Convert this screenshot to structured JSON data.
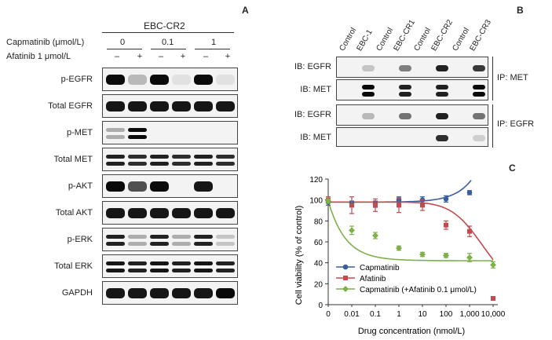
{
  "panel_a": {
    "letter": "A",
    "cell_line": "EBC-CR2",
    "capmatinib_label": "Capmatinib (μmol/L)",
    "capmatinib_values": [
      "0",
      "0.1",
      "1"
    ],
    "afatinib_label": "Afatinib 1 μmol/L",
    "afatinib_signs": [
      "–",
      "+",
      "–",
      "+",
      "–",
      "+"
    ],
    "rows": [
      "p-EGFR",
      "Total EGFR",
      "p-MET",
      "Total MET",
      "p-AKT",
      "Total AKT",
      "p-ERK",
      "Total ERK",
      "GAPDH"
    ]
  },
  "panel_b": {
    "letter": "B",
    "lanes": [
      "Control",
      "EBC-1",
      "Control",
      "EBC-CR1",
      "Control",
      "EBC-CR2",
      "Control",
      "EBC-CR3"
    ],
    "rows": [
      "IB: EGFR",
      "IB: MET",
      "IB: EGFR",
      "IB: MET"
    ],
    "groups": [
      "IP: MET",
      "IP: EGFR"
    ]
  },
  "panel_c": {
    "letter": "C"
  },
  "chart_data": {
    "type": "line",
    "xlabel": "Drug concentration (nmol/L)",
    "ylabel": "Cell viability (% of control)",
    "x_categories": [
      "0",
      "0.01",
      "0.1",
      "1",
      "10",
      "100",
      "1,000",
      "10,000"
    ],
    "ylim": [
      0,
      120
    ],
    "yticks": [
      "0",
      "20",
      "40",
      "60",
      "80",
      "100",
      "120"
    ],
    "legend_position": "bottom-left",
    "series": [
      {
        "name": "Capmatinib",
        "color": "#3a5f9e",
        "marker": "circle",
        "x_index": [
          0,
          1,
          2,
          3,
          4,
          5,
          6
        ],
        "values": [
          98,
          97,
          96,
          100,
          100,
          101,
          107
        ],
        "errors": [
          3,
          2,
          3,
          3,
          3,
          3,
          2
        ]
      },
      {
        "name": "Afatinib",
        "color": "#c44a4e",
        "marker": "square",
        "x_index": [
          0,
          1,
          2,
          3,
          4,
          5,
          6,
          7
        ],
        "values": [
          100,
          95,
          95,
          95,
          95,
          76,
          70,
          6
        ],
        "errors": [
          3,
          8,
          6,
          7,
          5,
          4,
          5,
          1
        ]
      },
      {
        "name": "Capmatinib (+Afatinib 0.1 μmol/L)",
        "color": "#7fb04a",
        "marker": "diamond",
        "x_index": [
          0,
          1,
          2,
          3,
          4,
          5,
          6,
          7
        ],
        "values": [
          99,
          71,
          66,
          54,
          48,
          47,
          45,
          38
        ],
        "errors": [
          2,
          4,
          3,
          2,
          2,
          2,
          4,
          3
        ]
      }
    ]
  }
}
